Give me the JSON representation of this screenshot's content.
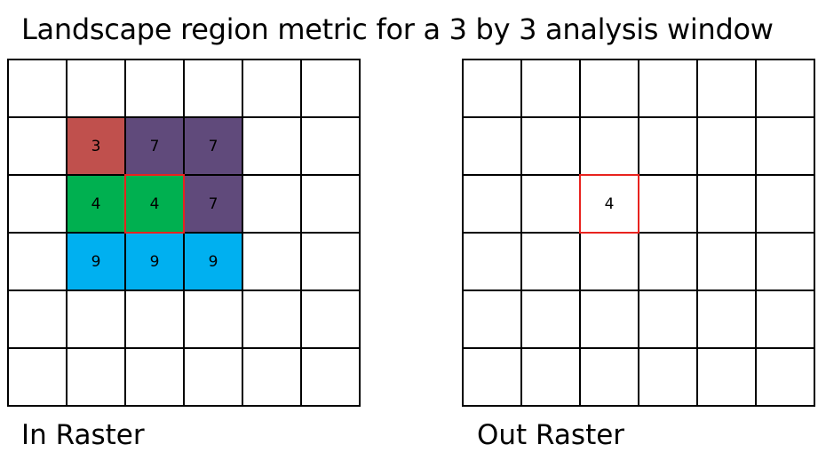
{
  "title": "Landscape region metric for a 3 by 3 analysis window",
  "in_raster": {
    "label": "In Raster",
    "cells": [
      [
        {
          "v": "",
          "c": ""
        },
        {
          "v": "",
          "c": ""
        },
        {
          "v": "",
          "c": ""
        },
        {
          "v": "",
          "c": ""
        },
        {
          "v": "",
          "c": ""
        },
        {
          "v": "",
          "c": ""
        }
      ],
      [
        {
          "v": "",
          "c": ""
        },
        {
          "v": "3",
          "c": "#c0504d"
        },
        {
          "v": "7",
          "c": "#604a7b"
        },
        {
          "v": "7",
          "c": "#604a7b"
        },
        {
          "v": "",
          "c": ""
        },
        {
          "v": "",
          "c": ""
        }
      ],
      [
        {
          "v": "",
          "c": ""
        },
        {
          "v": "4",
          "c": "#00b050"
        },
        {
          "v": "4",
          "c": "#00b050",
          "hl": true
        },
        {
          "v": "7",
          "c": "#604a7b"
        },
        {
          "v": "",
          "c": ""
        },
        {
          "v": "",
          "c": ""
        }
      ],
      [
        {
          "v": "",
          "c": ""
        },
        {
          "v": "9",
          "c": "#00b0f0"
        },
        {
          "v": "9",
          "c": "#00b0f0"
        },
        {
          "v": "9",
          "c": "#00b0f0"
        },
        {
          "v": "",
          "c": ""
        },
        {
          "v": "",
          "c": ""
        }
      ],
      [
        {
          "v": "",
          "c": ""
        },
        {
          "v": "",
          "c": ""
        },
        {
          "v": "",
          "c": ""
        },
        {
          "v": "",
          "c": ""
        },
        {
          "v": "",
          "c": ""
        },
        {
          "v": "",
          "c": ""
        }
      ],
      [
        {
          "v": "",
          "c": ""
        },
        {
          "v": "",
          "c": ""
        },
        {
          "v": "",
          "c": ""
        },
        {
          "v": "",
          "c": ""
        },
        {
          "v": "",
          "c": ""
        },
        {
          "v": "",
          "c": ""
        }
      ]
    ]
  },
  "out_raster": {
    "label": "Out Raster",
    "cells": [
      [
        {
          "v": "",
          "c": ""
        },
        {
          "v": "",
          "c": ""
        },
        {
          "v": "",
          "c": ""
        },
        {
          "v": "",
          "c": ""
        },
        {
          "v": "",
          "c": ""
        },
        {
          "v": "",
          "c": ""
        }
      ],
      [
        {
          "v": "",
          "c": ""
        },
        {
          "v": "",
          "c": ""
        },
        {
          "v": "",
          "c": ""
        },
        {
          "v": "",
          "c": ""
        },
        {
          "v": "",
          "c": ""
        },
        {
          "v": "",
          "c": ""
        }
      ],
      [
        {
          "v": "",
          "c": ""
        },
        {
          "v": "",
          "c": ""
        },
        {
          "v": "4",
          "c": "",
          "hl": true
        },
        {
          "v": "",
          "c": ""
        },
        {
          "v": "",
          "c": ""
        },
        {
          "v": "",
          "c": ""
        }
      ],
      [
        {
          "v": "",
          "c": ""
        },
        {
          "v": "",
          "c": ""
        },
        {
          "v": "",
          "c": ""
        },
        {
          "v": "",
          "c": ""
        },
        {
          "v": "",
          "c": ""
        },
        {
          "v": "",
          "c": ""
        }
      ],
      [
        {
          "v": "",
          "c": ""
        },
        {
          "v": "",
          "c": ""
        },
        {
          "v": "",
          "c": ""
        },
        {
          "v": "",
          "c": ""
        },
        {
          "v": "",
          "c": ""
        },
        {
          "v": "",
          "c": ""
        }
      ],
      [
        {
          "v": "",
          "c": ""
        },
        {
          "v": "",
          "c": ""
        },
        {
          "v": "",
          "c": ""
        },
        {
          "v": "",
          "c": ""
        },
        {
          "v": "",
          "c": ""
        },
        {
          "v": "",
          "c": ""
        }
      ]
    ]
  },
  "colors": {
    "highlight": "#e8231f"
  }
}
